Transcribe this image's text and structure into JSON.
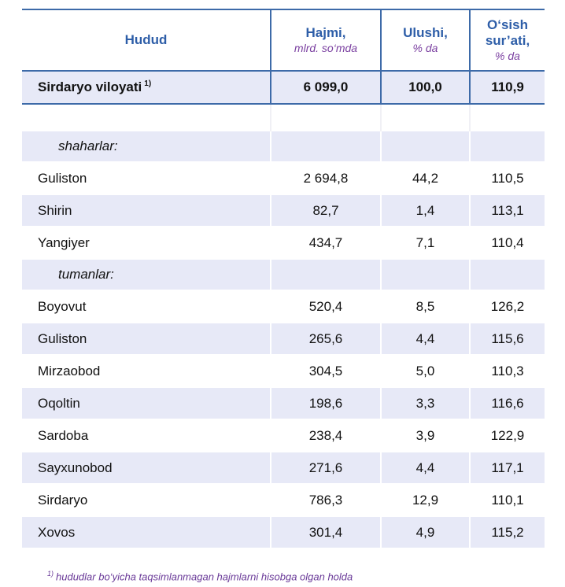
{
  "header": {
    "region": "Hudud",
    "volume": "Hajmi,",
    "volume_unit": "mlrd. so‘mda",
    "share": "Ulushi,",
    "share_unit": "% da",
    "growth_line1": "O‘sish",
    "growth_line2": "sur’ati,",
    "growth_unit": "% da"
  },
  "total": {
    "name": "Sirdaryo viloyati",
    "ref": "1)",
    "volume": "6 099,0",
    "share": "100,0",
    "growth": "110,9"
  },
  "sections": {
    "cities": "shaharlar:",
    "districts": "tumanlar:"
  },
  "cities": [
    {
      "name": "Guliston",
      "volume": "2 694,8",
      "share": "44,2",
      "growth": "110,5"
    },
    {
      "name": "Shirin",
      "volume": "82,7",
      "share": "1,4",
      "growth": "113,1"
    },
    {
      "name": "Yangiyer",
      "volume": "434,7",
      "share": "7,1",
      "growth": "110,4"
    }
  ],
  "districts": [
    {
      "name": "Boyovut",
      "volume": "520,4",
      "share": "8,5",
      "growth": "126,2"
    },
    {
      "name": "Guliston",
      "volume": "265,6",
      "share": "4,4",
      "growth": "115,6"
    },
    {
      "name": "Mirzaobod",
      "volume": "304,5",
      "share": "5,0",
      "growth": "110,3"
    },
    {
      "name": "Oqoltin",
      "volume": "198,6",
      "share": "3,3",
      "growth": "116,6"
    },
    {
      "name": "Sardoba",
      "volume": "238,4",
      "share": "3,9",
      "growth": "122,9"
    },
    {
      "name": "Sayxunobod",
      "volume": "271,6",
      "share": "4,4",
      "growth": "117,1"
    },
    {
      "name": "Sirdaryo",
      "volume": "786,3",
      "share": "12,9",
      "growth": "110,1"
    },
    {
      "name": "Xovos",
      "volume": "301,4",
      "share": "4,9",
      "growth": "115,2"
    }
  ],
  "footnote": {
    "ref": "1)",
    "text": "hududlar  bo‘yicha taqsimlanmagan hajmlarni hisobga olgan holda"
  },
  "colors": {
    "header_text": "#2e5ea8",
    "unit_text": "#7a3fa0",
    "row_band": "#e7e9f7",
    "rule": "#3d6aa8"
  }
}
